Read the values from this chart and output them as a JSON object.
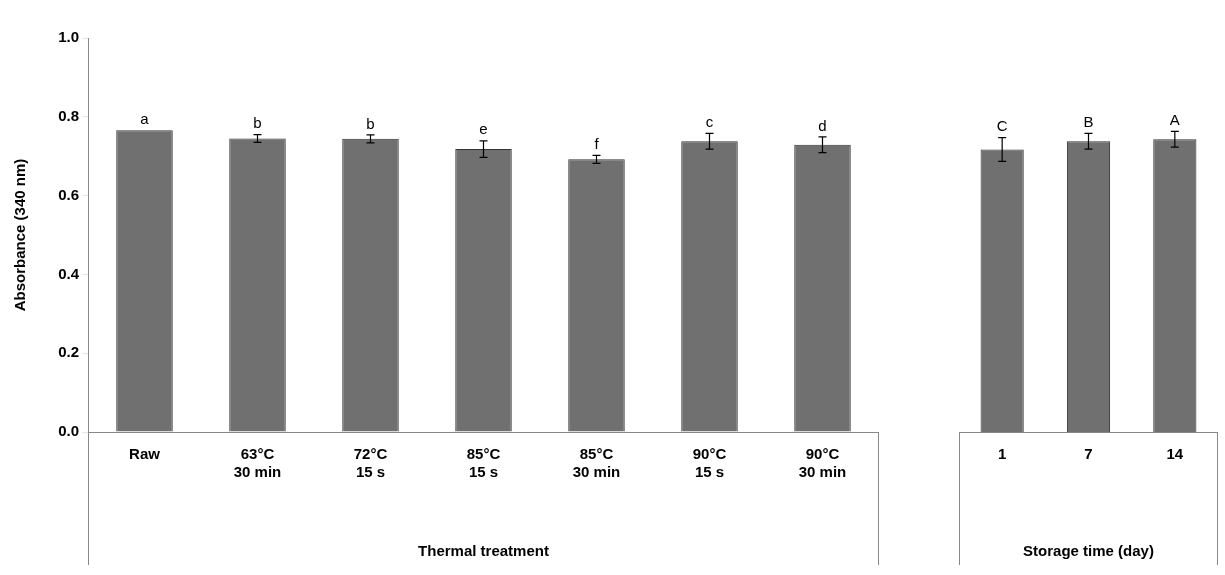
{
  "chart_data": [
    {
      "type": "bar",
      "ylabel": "Absorbance (340 nm)",
      "xlabel": "Thermal treatment",
      "categories": [
        "Raw",
        "63°C 30 min",
        "72°C 15 s",
        "85°C 15 s",
        "85°C 30 min",
        "90°C 15 s",
        "90°C 30 min"
      ],
      "values": [
        0.766,
        0.745,
        0.744,
        0.718,
        0.692,
        0.738,
        0.729
      ],
      "errors": [
        null,
        0.01,
        0.01,
        0.021,
        0.01,
        0.02,
        0.02
      ],
      "value_labels": [
        "a",
        "b",
        "b",
        "e",
        "f",
        "c",
        "d"
      ],
      "color": "#707070",
      "ylim": [
        0,
        1.0
      ],
      "yticks": [
        {
          "value": 0,
          "label": "0.0"
        },
        0.2,
        0.4,
        0.6,
        0.8,
        {
          "value": 1.0,
          "label": "1.0"
        }
      ],
      "grid": false,
      "legend": false
    },
    {
      "type": "bar",
      "xlabel": "Storage time (day)",
      "categories": [
        "1",
        "7",
        "14"
      ],
      "values": [
        0.717,
        0.738,
        0.743
      ],
      "errors": [
        0.03,
        0.02,
        0.02
      ],
      "value_labels": [
        "C",
        "B",
        "A"
      ],
      "color": "#707070",
      "ylim": [
        0,
        1.0
      ],
      "tick_labels": "x",
      "grid": false,
      "legend": false
    }
  ]
}
